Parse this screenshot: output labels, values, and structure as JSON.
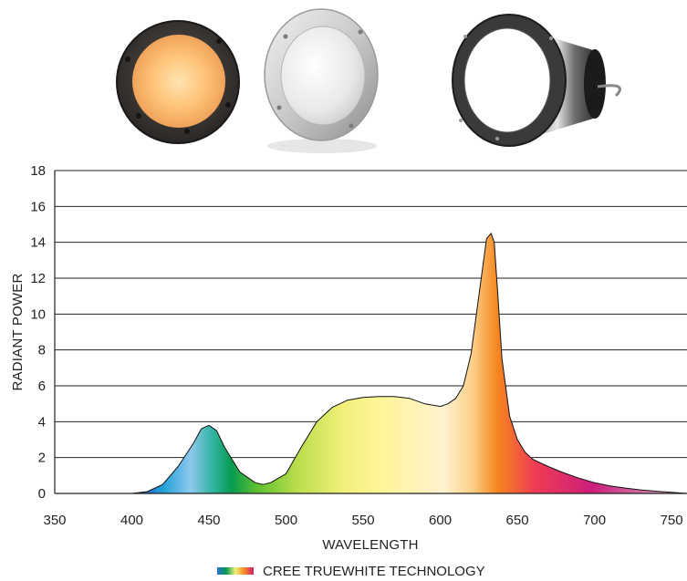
{
  "products": [
    {
      "name": "round-downlight-warm-module"
    },
    {
      "name": "round-downlight-white-module"
    },
    {
      "name": "downlight-housing-with-trim-ring"
    }
  ],
  "colors": {
    "gridline": "#222222",
    "curve_outline": "#111111",
    "background": "#ffffff"
  },
  "chart_data": {
    "type": "area",
    "title": "",
    "xlabel": "WAVELENGTH",
    "ylabel": "RADIANT POWER",
    "xlim": [
      350,
      760
    ],
    "ylim": [
      0,
      18
    ],
    "xticks": [
      350,
      400,
      450,
      500,
      550,
      600,
      650,
      700,
      750
    ],
    "yticks": [
      0,
      2,
      4,
      6,
      8,
      10,
      12,
      14,
      16,
      18
    ],
    "grid": "horizontal",
    "legend_position": "bottom-center",
    "series": [
      {
        "name": "CREE TRUEWHITE TECHNOLOGY",
        "fill": "spectral-gradient",
        "x": [
          400,
          410,
          420,
          430,
          440,
          445,
          450,
          455,
          460,
          470,
          480,
          485,
          490,
          500,
          510,
          520,
          530,
          540,
          550,
          560,
          570,
          580,
          590,
          600,
          605,
          610,
          615,
          620,
          625,
          630,
          633,
          635,
          637,
          640,
          645,
          650,
          655,
          660,
          670,
          680,
          690,
          700,
          710,
          720,
          730,
          740,
          750,
          760
        ],
        "y": [
          0,
          0.1,
          0.5,
          1.5,
          2.8,
          3.6,
          3.8,
          3.5,
          2.6,
          1.2,
          0.6,
          0.5,
          0.6,
          1.1,
          2.6,
          4.0,
          4.8,
          5.2,
          5.35,
          5.4,
          5.4,
          5.3,
          5.0,
          4.85,
          5.0,
          5.3,
          6.0,
          7.8,
          11.0,
          14.2,
          14.5,
          14.0,
          11.5,
          7.5,
          4.3,
          3.0,
          2.3,
          1.9,
          1.5,
          1.15,
          0.85,
          0.6,
          0.42,
          0.3,
          0.2,
          0.12,
          0.06,
          0
        ]
      }
    ]
  }
}
